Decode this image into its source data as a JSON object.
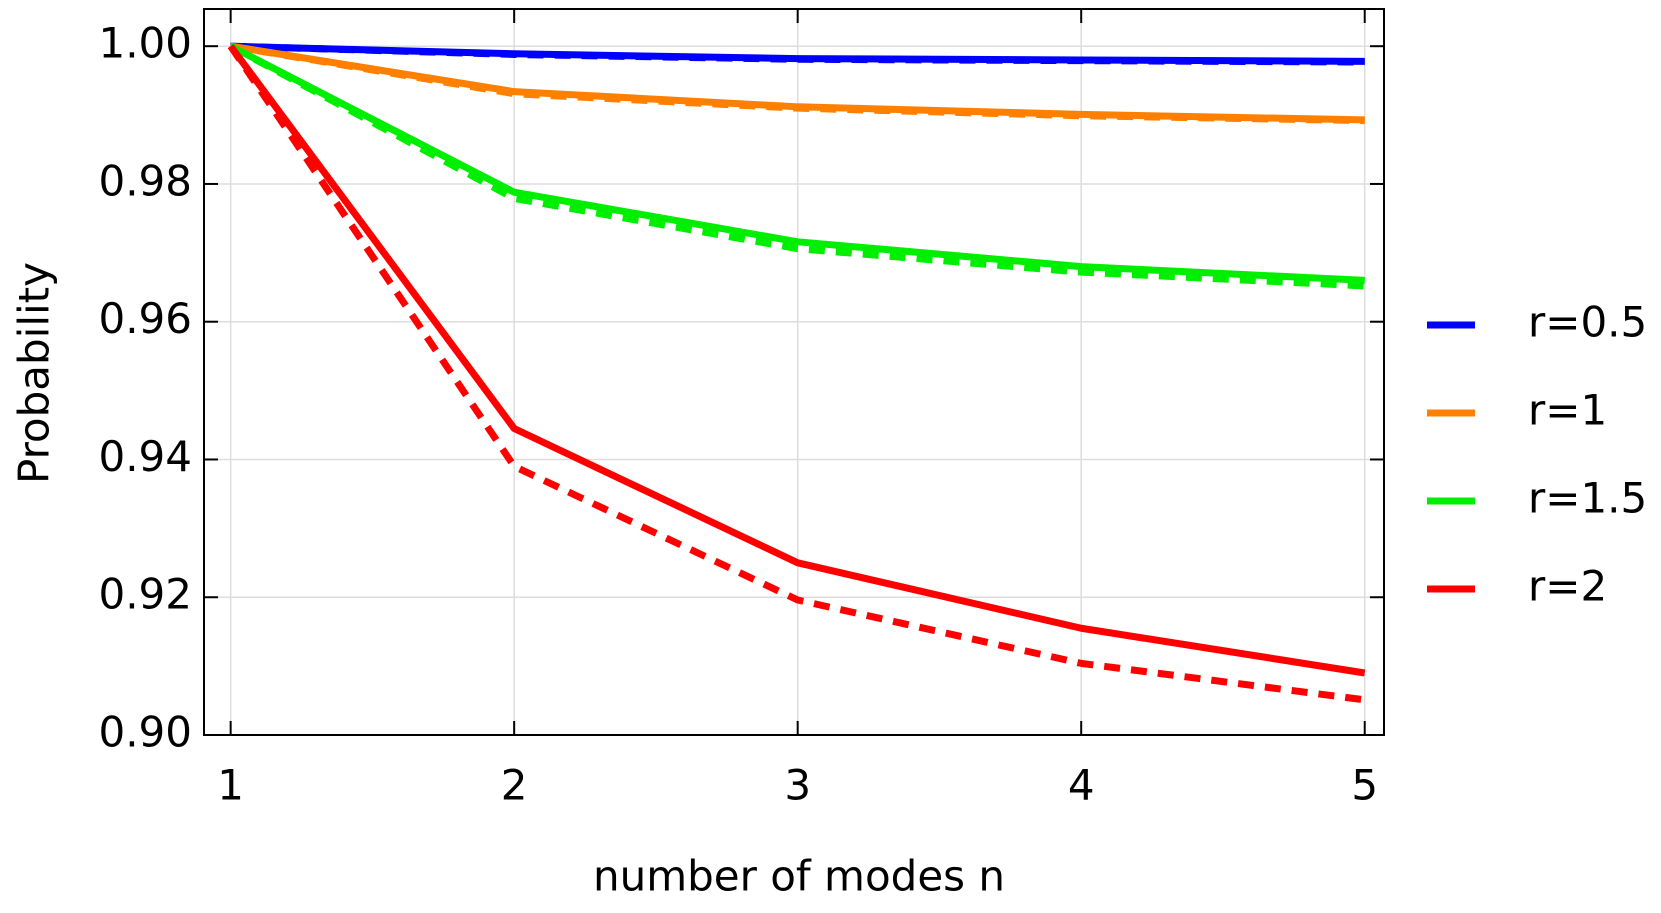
{
  "chart_data": {
    "type": "line",
    "x_label": "number of modes n",
    "y_label": "Probability",
    "x": [
      1,
      2,
      3,
      4,
      5
    ],
    "xlim": [
      0.906,
      5.068
    ],
    "xticks": [
      1,
      2,
      3,
      4,
      5
    ],
    "ylim": [
      0.9,
      1.0054
    ],
    "yticks": [
      {
        "value": 0.9,
        "label": "0.90"
      },
      {
        "value": 0.92,
        "label": "0.92"
      },
      {
        "value": 0.94,
        "label": "0.94"
      },
      {
        "value": 0.96,
        "label": "0.96"
      },
      {
        "value": 0.98,
        "label": "0.98"
      },
      {
        "value": 1.0,
        "label": "1.00"
      }
    ],
    "grid": true,
    "legend": "right",
    "series": [
      {
        "color": "#0000ff",
        "dashed": true,
        "values": [
          1.0,
          0.9988,
          0.9981,
          0.9979,
          0.9977
        ]
      },
      {
        "color": "#ff8000",
        "dashed": true,
        "values": [
          1.0,
          0.9931,
          0.991,
          0.9899,
          0.9892
        ]
      },
      {
        "color": "#00ee00",
        "dashed": true,
        "values": [
          1.0,
          0.9779,
          0.9706,
          0.9672,
          0.9652
        ]
      },
      {
        "color": "#ff0000",
        "dashed": true,
        "values": [
          1.0,
          0.939,
          0.9196,
          0.9104,
          0.9051
        ]
      },
      {
        "name": "r=0.5",
        "color": "#0000ff",
        "values": [
          1.0,
          0.9989,
          0.9982,
          0.998,
          0.9978
        ]
      },
      {
        "name": "r=1",
        "color": "#ff8000",
        "values": [
          1.0,
          0.9934,
          0.9912,
          0.9901,
          0.9893
        ]
      },
      {
        "name": "r=1.5",
        "color": "#00ee00",
        "values": [
          1.0,
          0.9788,
          0.9716,
          0.968,
          0.966
        ]
      },
      {
        "name": "r=2",
        "color": "#ff0000",
        "values": [
          1.0,
          0.9445,
          0.925,
          0.9155,
          0.909
        ]
      }
    ]
  }
}
